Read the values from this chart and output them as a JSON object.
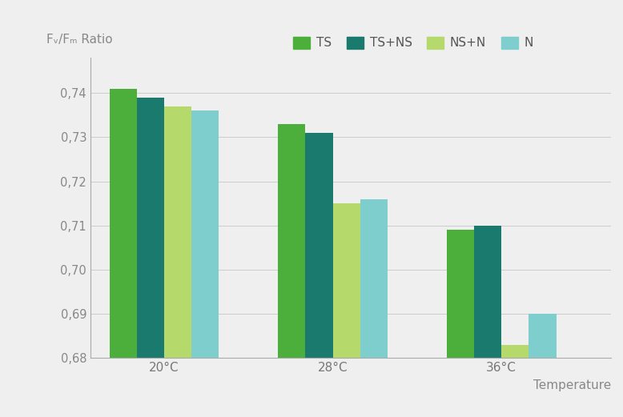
{
  "categories": [
    "20°C",
    "28°C",
    "36°C"
  ],
  "series": {
    "TS": [
      0.741,
      0.733,
      0.709
    ],
    "TS+NS": [
      0.739,
      0.731,
      0.71
    ],
    "NS+N": [
      0.737,
      0.715,
      0.683
    ],
    "N": [
      0.736,
      0.716,
      0.69
    ]
  },
  "colors": {
    "TS": "#4caf3c",
    "TS+NS": "#1a7a6e",
    "NS+N": "#b5d96b",
    "N": "#7ecece"
  },
  "legend_labels": [
    "TS",
    "TS+NS",
    "NS+N",
    "N"
  ],
  "ylabel": "Fᵥ/Fₘ Ratio",
  "xlabel": "Temperature",
  "ylim": [
    0.68,
    0.748
  ],
  "yticks": [
    0.68,
    0.69,
    0.7,
    0.71,
    0.72,
    0.73,
    0.74
  ],
  "background_color": "#efefef",
  "bar_width": 0.13,
  "group_positions": [
    0.3,
    1.1,
    1.9
  ]
}
